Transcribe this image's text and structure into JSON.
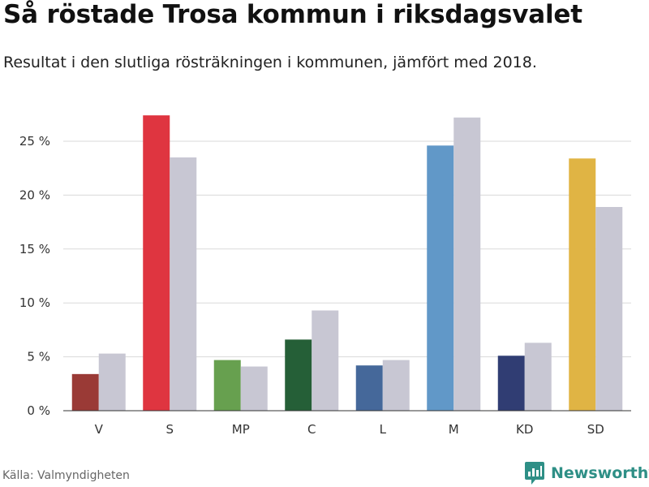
{
  "header": {
    "title": "Så röstade Trosa kommun i riksdagsvalet",
    "subtitle": "Resultat i den slutliga rösträkningen i kommunen, jämfört med 2018."
  },
  "footer": {
    "source": "Källa: Valmyndigheten",
    "brand": "Newsworthy",
    "brand_icon": "newsworthy-logo-icon",
    "brand_color": "#2e8f86"
  },
  "chart_data": {
    "type": "bar",
    "categories": [
      "V",
      "S",
      "MP",
      "C",
      "L",
      "M",
      "KD",
      "SD"
    ],
    "series": [
      {
        "values": [
          3.4,
          27.4,
          4.7,
          6.6,
          4.2,
          24.6,
          5.1,
          23.4
        ],
        "colors": [
          "#9a3a36",
          "#df3540",
          "#67a04f",
          "#255f37",
          "#45689a",
          "#6198c8",
          "#303d73",
          "#e0b444"
        ]
      },
      {
        "values": [
          5.3,
          23.5,
          4.1,
          9.3,
          4.7,
          27.2,
          6.3,
          18.9
        ],
        "color": "#c8c7d3"
      }
    ],
    "yticks": [
      "0 %",
      "5 %",
      "10 %",
      "15 %",
      "20 %",
      "25 %"
    ],
    "ytick_values": [
      0,
      5,
      10,
      15,
      20,
      25
    ],
    "ylim": [
      0,
      27.5
    ],
    "grid": true
  }
}
